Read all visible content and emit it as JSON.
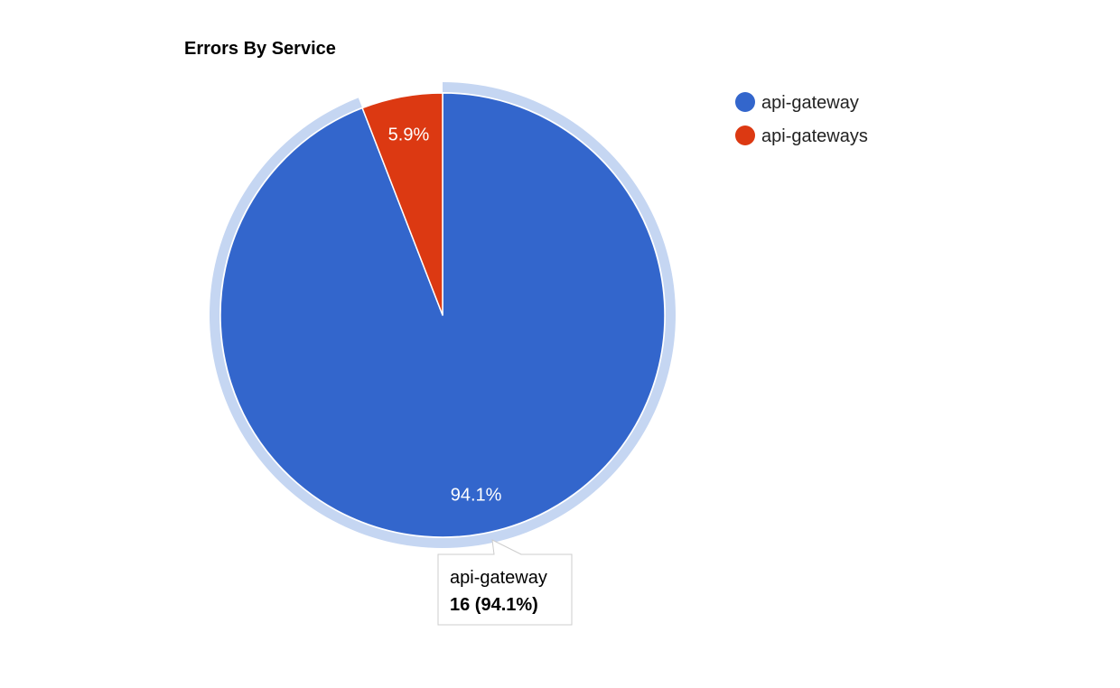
{
  "chart_data": {
    "type": "pie",
    "title": "Errors By Service",
    "slices": [
      {
        "name": "api-gateway",
        "value": 16,
        "percent_label": "94.1%",
        "color": "#3366cc"
      },
      {
        "name": "api-gateways",
        "value": 1,
        "percent_label": "5.9%",
        "color": "#dc3912"
      }
    ],
    "legend_position": "right",
    "highlighted_slice": "api-gateway",
    "highlight_color": "#c5d6f2"
  },
  "tooltip": {
    "name": "api-gateway",
    "value_line": "16 (94.1%)"
  }
}
